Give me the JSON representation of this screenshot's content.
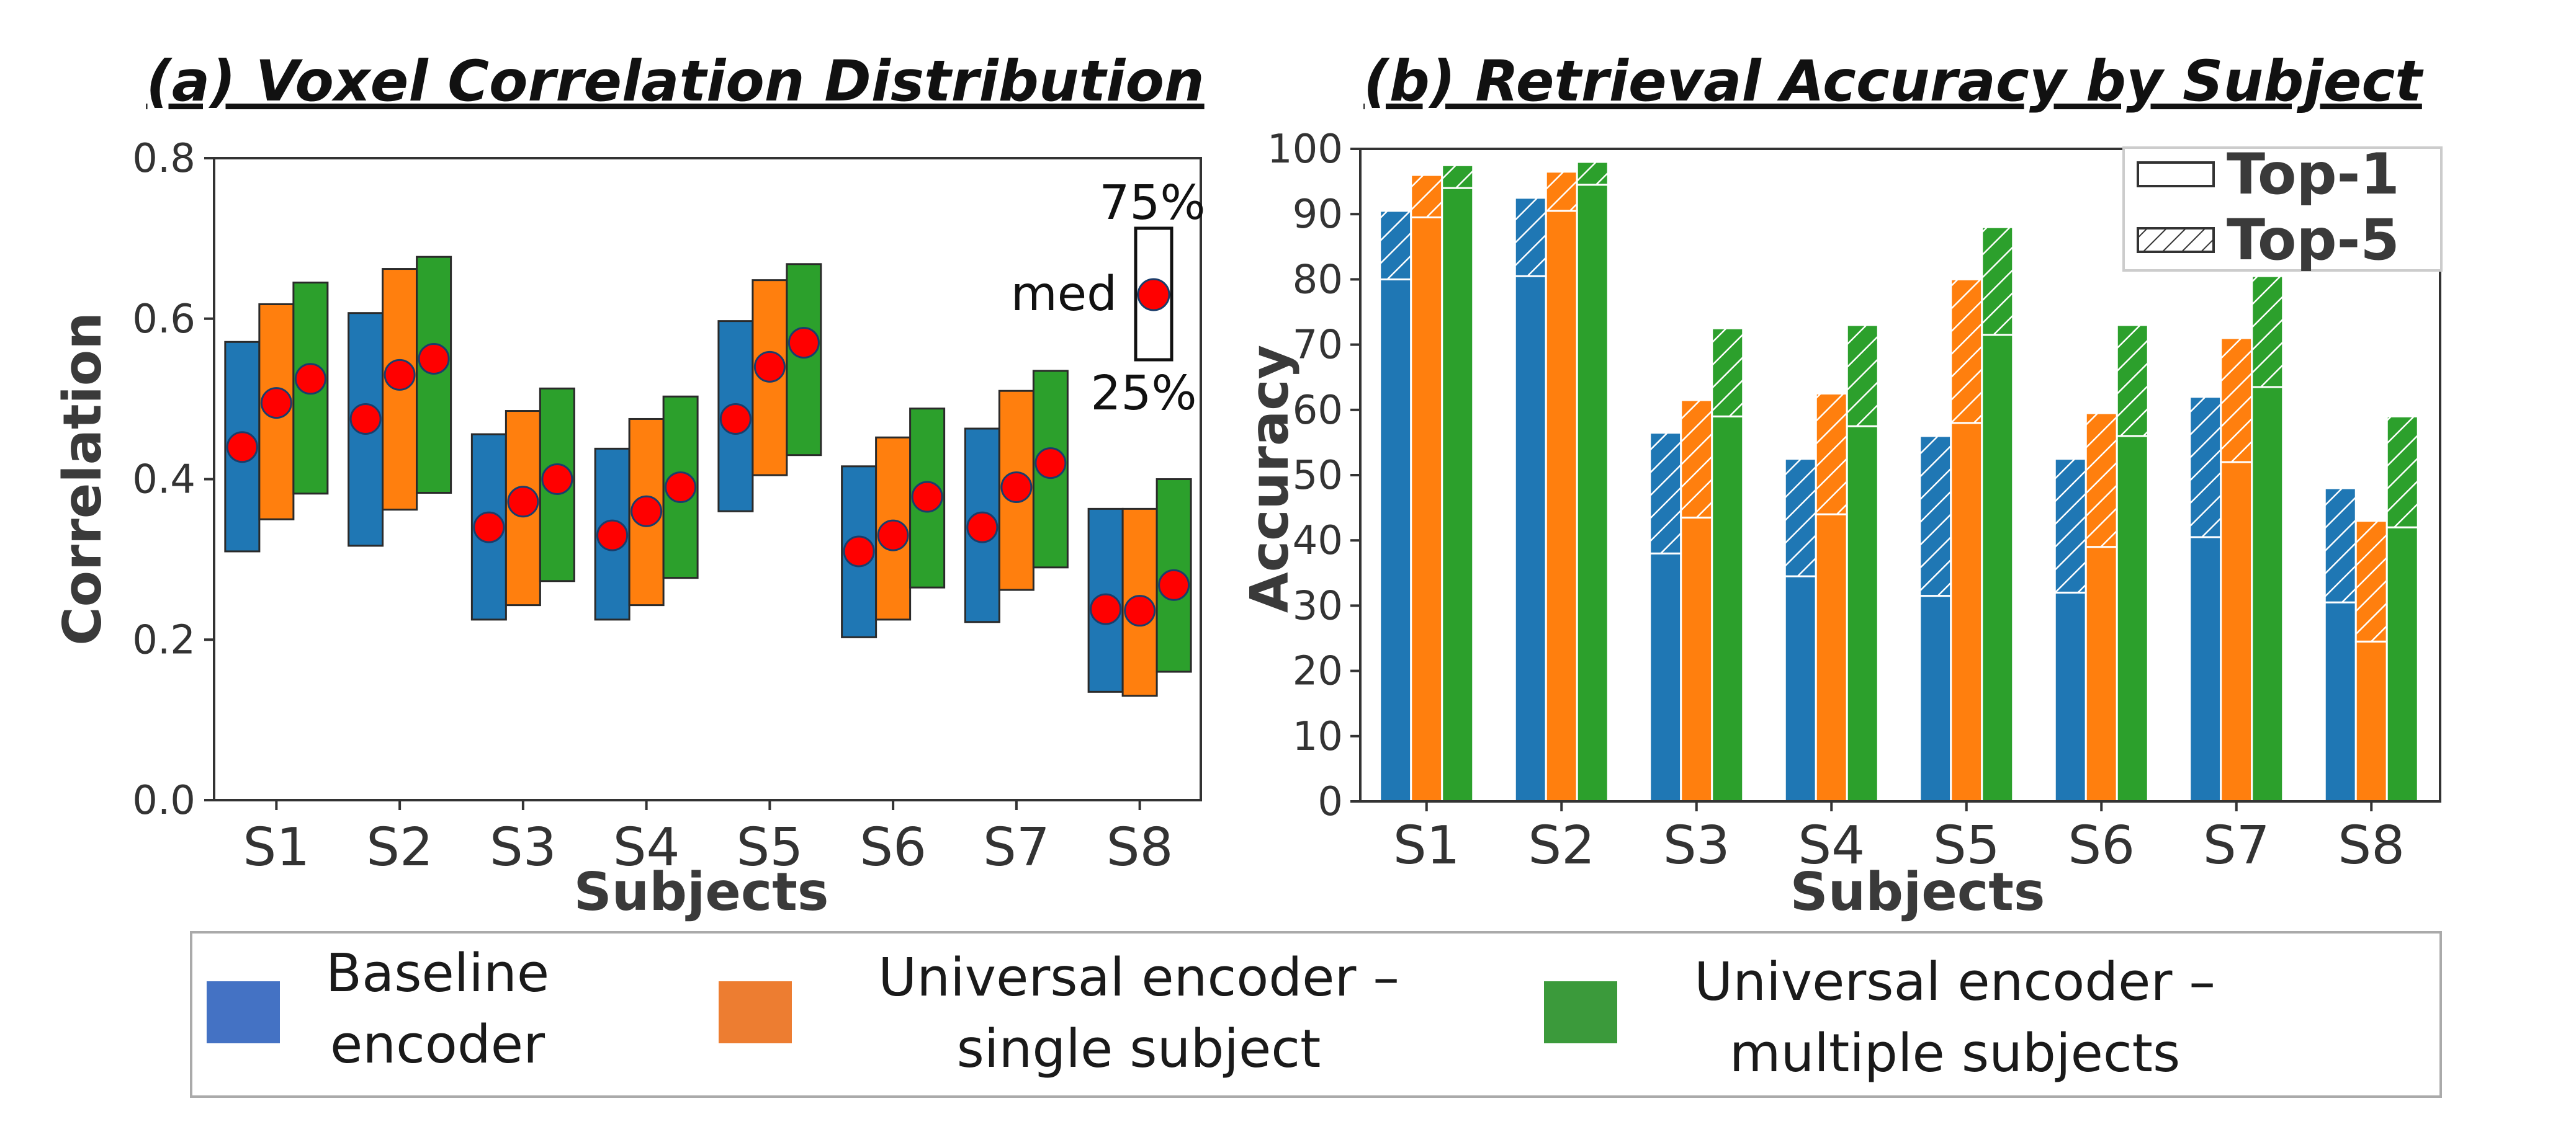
{
  "colors": {
    "baseline": "#1f77b4",
    "single": "#ff7f0e",
    "multi": "#2ca02c",
    "median": "#ff0000",
    "legend_baseline": "#4472c4",
    "legend_single": "#ed7d31",
    "legend_multi": "#3b9a3b"
  },
  "chart_data": [
    {
      "id": "a",
      "type": "box",
      "title": "(a) Voxel Correlation Distribution",
      "xlabel": "Subjects",
      "ylabel": "Correlation",
      "ylim": [
        0,
        0.8
      ],
      "yticks": [
        "0.0",
        "0.2",
        "0.4",
        "0.6",
        "0.8"
      ],
      "categories": [
        "S1",
        "S2",
        "S3",
        "S4",
        "S5",
        "S6",
        "S7",
        "S8"
      ],
      "series": [
        {
          "name": "Baseline encoder",
          "q1": [
            0.31,
            0.317,
            0.225,
            0.225,
            0.36,
            0.203,
            0.222,
            0.135
          ],
          "median": [
            0.44,
            0.475,
            0.34,
            0.33,
            0.475,
            0.31,
            0.34,
            0.238
          ],
          "q3": [
            0.571,
            0.607,
            0.456,
            0.438,
            0.597,
            0.416,
            0.463,
            0.363
          ]
        },
        {
          "name": "Universal encoder – single subject",
          "q1": [
            0.35,
            0.362,
            0.243,
            0.243,
            0.405,
            0.225,
            0.262,
            0.13
          ],
          "median": [
            0.495,
            0.53,
            0.372,
            0.36,
            0.54,
            0.33,
            0.39,
            0.236
          ],
          "q3": [
            0.618,
            0.662,
            0.485,
            0.475,
            0.648,
            0.452,
            0.51,
            0.363
          ]
        },
        {
          "name": "Universal encoder – multiple subjects",
          "q1": [
            0.382,
            0.383,
            0.273,
            0.277,
            0.43,
            0.265,
            0.29,
            0.16
          ],
          "median": [
            0.525,
            0.55,
            0.4,
            0.39,
            0.57,
            0.378,
            0.42,
            0.268
          ],
          "q3": [
            0.645,
            0.677,
            0.513,
            0.503,
            0.668,
            0.488,
            0.535,
            0.4
          ]
        }
      ],
      "annotation": {
        "top": "75%",
        "mid": "med",
        "bottom": "25%"
      }
    },
    {
      "id": "b",
      "type": "bar",
      "title": "(b) Retrieval Accuracy by Subject",
      "xlabel": "Subjects",
      "ylabel": "Accuracy",
      "ylim": [
        0,
        100
      ],
      "yticks": [
        "0",
        "10",
        "20",
        "30",
        "40",
        "50",
        "60",
        "70",
        "80",
        "90",
        "100"
      ],
      "categories": [
        "S1",
        "S2",
        "S3",
        "S4",
        "S5",
        "S6",
        "S7",
        "S8"
      ],
      "series": [
        {
          "name": "Baseline encoder",
          "top1": [
            80,
            80.5,
            38,
            34.5,
            31.5,
            32,
            40.5,
            30.5
          ],
          "top5": [
            90.5,
            92.5,
            56.5,
            52.5,
            56,
            52.5,
            62,
            48
          ]
        },
        {
          "name": "Universal encoder – single subject",
          "top1": [
            89.5,
            90.5,
            43.5,
            44,
            58,
            39,
            52,
            24.5
          ],
          "top5": [
            96,
            96.5,
            61.5,
            62.5,
            80,
            59.5,
            71,
            43
          ]
        },
        {
          "name": "Universal encoder – multiple subjects",
          "top1": [
            94,
            94.5,
            59,
            57.5,
            71.5,
            56,
            63.5,
            42
          ],
          "top5": [
            97.5,
            98,
            72.5,
            73,
            88,
            73,
            80.5,
            59
          ]
        }
      ],
      "legend": {
        "top1": "Top-1",
        "top5": "Top-5"
      }
    }
  ],
  "legend": {
    "baseline": {
      "line1": "Baseline",
      "line2": "encoder"
    },
    "single": {
      "line1": "Universal encoder –",
      "line2": "single subject"
    },
    "multi": {
      "line1": "Universal encoder –",
      "line2": "multiple subjects"
    }
  }
}
